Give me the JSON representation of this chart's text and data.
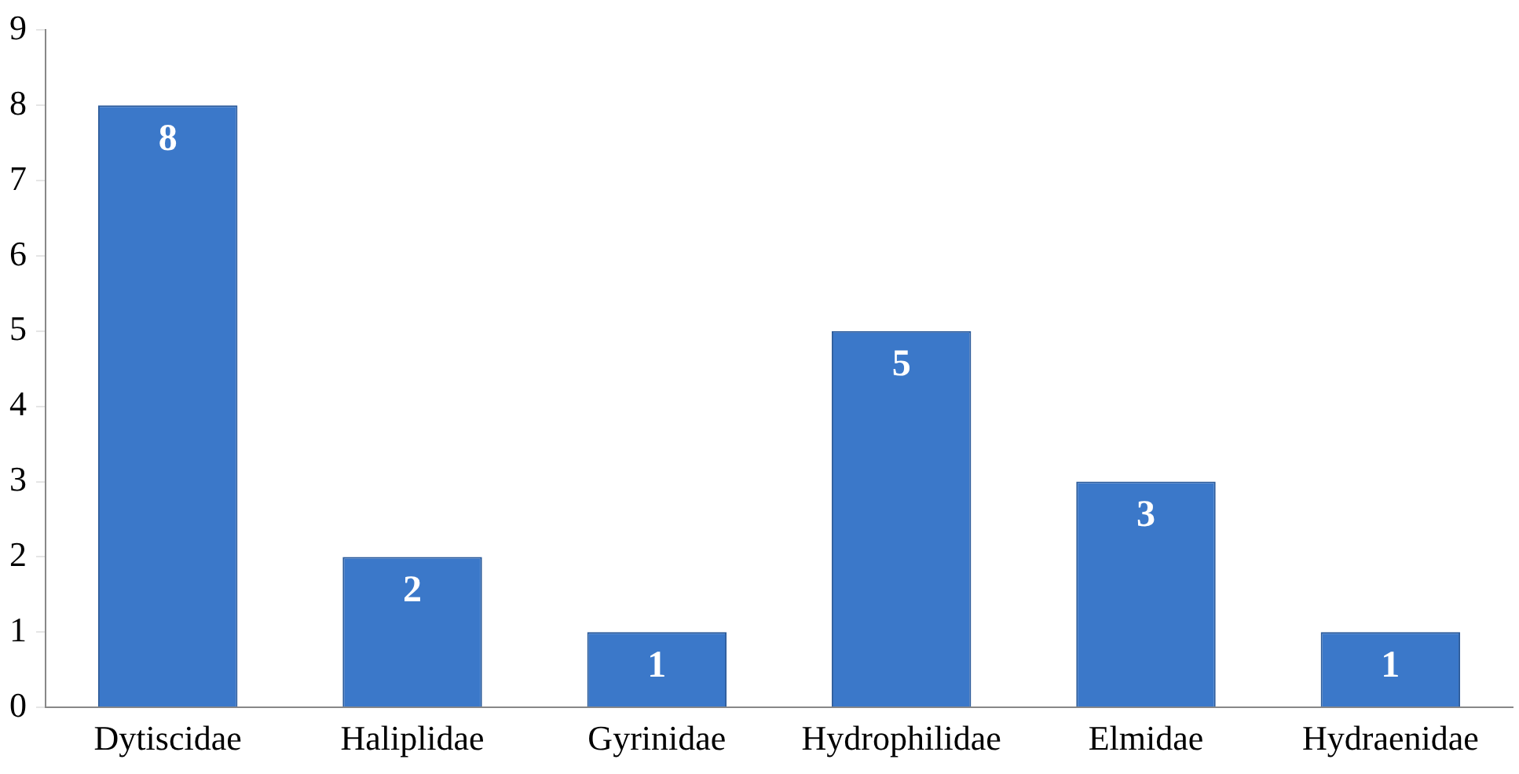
{
  "chart_data": {
    "type": "bar",
    "categories": [
      "Dytiscidae",
      "Haliplidae",
      "Gyrinidae",
      "Hydrophilidae",
      "Elmidae",
      "Hydraenidae"
    ],
    "values": [
      8,
      2,
      1,
      5,
      3,
      1
    ],
    "color": "#3b78c9",
    "ylim": [
      0,
      9
    ],
    "yticks": [
      0,
      1,
      2,
      3,
      4,
      5,
      6,
      7,
      8,
      9
    ],
    "grid": false,
    "legend": false,
    "data_labels": true
  }
}
